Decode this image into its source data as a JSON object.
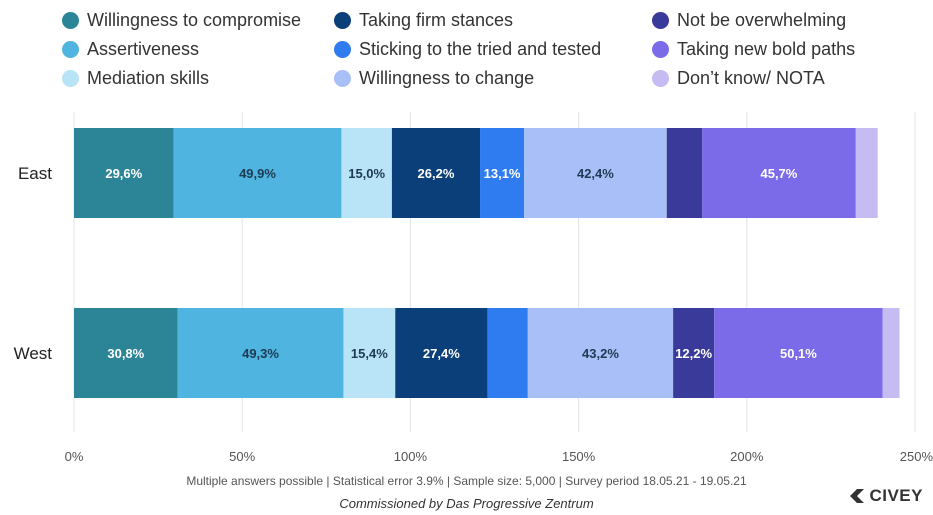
{
  "colors": {
    "grid": "#e4e4e4",
    "axis_text": "#555555"
  },
  "chart_data": {
    "type": "bar",
    "orientation": "horizontal",
    "stacked": true,
    "categories": [
      "East",
      "West"
    ],
    "xlim": [
      0,
      250
    ],
    "xticks": [
      0,
      50,
      100,
      150,
      200,
      250
    ],
    "tick_suffix": "%",
    "grid": true,
    "legend_position": "top",
    "series": [
      {
        "name": "Willingness to compromise",
        "color": "#2c8597",
        "values": [
          29.6,
          30.8
        ],
        "labels": [
          "29,6%",
          "30,8%"
        ],
        "label_color": "#ffffff"
      },
      {
        "name": "Assertiveness",
        "color": "#4fb4df",
        "values": [
          49.9,
          49.3
        ],
        "labels": [
          "49,9%",
          "49,3%"
        ],
        "label_color": "#1d3b53"
      },
      {
        "name": "Mediation skills",
        "color": "#b9e3f6",
        "values": [
          15.0,
          15.4
        ],
        "labels": [
          "15,0%",
          "15,4%"
        ],
        "label_color": "#1d3b53"
      },
      {
        "name": "Taking firm stances",
        "color": "#0b3f7a",
        "values": [
          26.2,
          27.4
        ],
        "labels": [
          "26,2%",
          "27,4%"
        ],
        "label_color": "#ffffff"
      },
      {
        "name": "Sticking to the tried and tested",
        "color": "#2f7cf0",
        "values": [
          13.1,
          12.0
        ],
        "labels": [
          "13,1%",
          ""
        ],
        "label_color": "#ffffff"
      },
      {
        "name": "Willingness to change",
        "color": "#a8bff7",
        "values": [
          42.4,
          43.2
        ],
        "labels": [
          "42,4%",
          "43,2%"
        ],
        "label_color": "#1d3b53"
      },
      {
        "name": "Not be overwhelming",
        "color": "#3a3a9a",
        "values": [
          10.5,
          12.2
        ],
        "labels": [
          "",
          "12,2%"
        ],
        "label_color": "#ffffff"
      },
      {
        "name": "Taking new bold paths",
        "color": "#7b6be8",
        "values": [
          45.7,
          50.1
        ],
        "labels": [
          "45,7%",
          "50,1%"
        ],
        "label_color": "#ffffff"
      },
      {
        "name": "Don’t know/ NOTA",
        "color": "#c6bcf2",
        "values": [
          6.5,
          5.0
        ],
        "labels": [
          "",
          ""
        ],
        "label_color": "#1d3b53"
      }
    ]
  },
  "footnote": "Multiple answers possible | Statistical error 3.9% | Sample size: 5,000 | Survey period 18.05.21 - 19.05.21",
  "commission": "Commissioned by Das Progressive Zentrum",
  "brand": "CIVEY",
  "icons": {
    "brand_logo": "civey-logo-icon"
  }
}
